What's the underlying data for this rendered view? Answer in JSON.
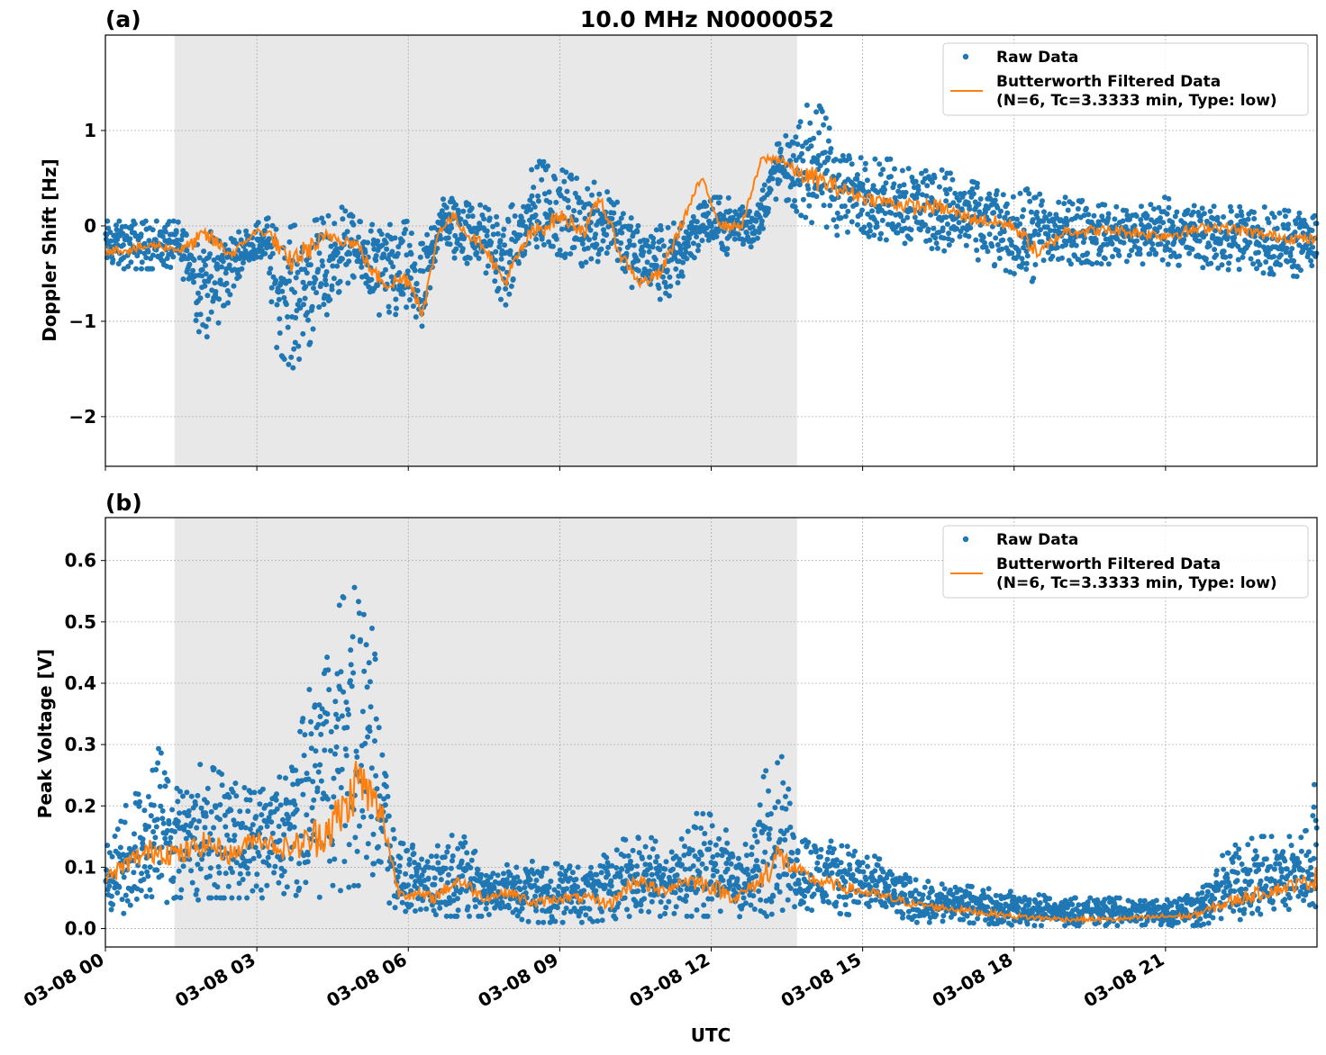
{
  "figure": {
    "title": "10.0 MHz N0000052",
    "xlabel": "UTC",
    "x_ticks": [
      "03-08 00",
      "03-08 03",
      "03-08 06",
      "03-08 09",
      "03-08 12",
      "03-08 15",
      "03-08 18",
      "03-08 21"
    ],
    "colors": {
      "raw": "#1f77b4",
      "filtered": "#ff7f0e",
      "night_shade": "#e8e8e8",
      "grid": "#b0b0b0"
    },
    "legend": {
      "raw_label": "Raw Data",
      "filtered_label_line1": "Butterworth Filtered Data",
      "filtered_label_line2": "(N=6, Tc=3.3333 min, Type: low)"
    }
  },
  "chart_data": [
    {
      "type": "scatter",
      "panel_label": "(a)",
      "ylabel": "Doppler Shift [Hz]",
      "xlim_hours": [
        0,
        24
      ],
      "ylim": [
        -2.52,
        2.0
      ],
      "yticks": [
        1,
        0,
        -1,
        -2
      ],
      "ytick_labels": [
        "1",
        "0",
        "−1",
        "−2"
      ],
      "shaded_interval_hours": [
        1.37,
        13.7
      ],
      "legend_position": "upper-right",
      "series": [
        {
          "name": "Raw Data",
          "style": "points"
        },
        {
          "name": "Butterworth Filtered Data (N=6, Tc=3.3333 min, Type: low)",
          "style": "line"
        }
      ],
      "filtered_trend": {
        "hours": [
          0,
          0.5,
          1.0,
          1.5,
          2.0,
          2.5,
          3.0,
          3.3,
          3.6,
          4.0,
          4.5,
          5.0,
          5.3,
          5.6,
          6.0,
          6.3,
          6.6,
          6.9,
          7.2,
          7.5,
          7.9,
          8.4,
          9.0,
          9.5,
          9.8,
          10.2,
          10.6,
          11.0,
          11.4,
          11.8,
          12.2,
          12.6,
          13.0,
          13.4,
          13.7,
          14.0,
          15.0,
          16.0,
          16.5,
          17.0,
          18.0,
          18.5,
          19.0,
          20.0,
          21.0,
          22.0,
          23.0,
          24.0
        ],
        "values": [
          -0.25,
          -0.25,
          -0.2,
          -0.25,
          -0.1,
          -0.3,
          -0.05,
          -0.1,
          -0.4,
          -0.25,
          -0.1,
          -0.2,
          -0.5,
          -0.6,
          -0.55,
          -0.9,
          -0.05,
          0.1,
          -0.1,
          -0.2,
          -0.6,
          -0.1,
          0.1,
          -0.05,
          0.3,
          -0.3,
          -0.6,
          -0.5,
          0.0,
          0.5,
          0.0,
          0.0,
          0.7,
          0.7,
          0.55,
          0.5,
          0.3,
          0.2,
          0.2,
          0.1,
          0.0,
          -0.3,
          -0.05,
          -0.05,
          -0.1,
          0.0,
          -0.1,
          -0.15
        ]
      },
      "raw_spread": {
        "hours": [
          0,
          1.4,
          1.6,
          1.9,
          2.2,
          2.8,
          3.2,
          3.4,
          3.7,
          4.1,
          4.4,
          4.7,
          5.0,
          5.5,
          6.0,
          6.3,
          6.6,
          6.9,
          7.5,
          7.9,
          8.3,
          8.6,
          9.0,
          9.5,
          10.0,
          10.5,
          11.2,
          11.8,
          12.3,
          12.9,
          13.3,
          13.7,
          14.0,
          14.5,
          15.0,
          16.0,
          17.0,
          18.0,
          18.3,
          19.0,
          20.0,
          21.0,
          22.0,
          23.0,
          24.0
        ],
        "lower": [
          -0.45,
          -0.45,
          -0.6,
          -1.2,
          -1.1,
          -0.35,
          -0.4,
          -1.3,
          -1.5,
          -1.2,
          -1.0,
          -0.6,
          -0.6,
          -1.0,
          -1.0,
          -1.3,
          -0.2,
          -0.35,
          -0.45,
          -0.9,
          -0.5,
          -0.3,
          -0.3,
          -0.45,
          -0.3,
          -0.7,
          -0.8,
          -0.2,
          -0.3,
          -0.2,
          0.3,
          0.15,
          0.0,
          -0.1,
          -0.1,
          -0.2,
          -0.3,
          -0.5,
          -0.6,
          -0.4,
          -0.4,
          -0.4,
          -0.45,
          -0.5,
          -0.55
        ],
        "upper": [
          0.05,
          0.05,
          0.0,
          0.0,
          -0.1,
          -0.05,
          0.1,
          -0.05,
          0.0,
          0.05,
          0.1,
          0.2,
          0.05,
          0.0,
          0.05,
          -0.2,
          0.25,
          0.35,
          0.2,
          0.1,
          0.4,
          0.8,
          0.6,
          0.45,
          0.5,
          0.0,
          0.0,
          0.3,
          0.3,
          0.2,
          0.9,
          1.0,
          1.4,
          0.9,
          0.7,
          0.7,
          0.5,
          0.3,
          0.4,
          0.3,
          0.2,
          0.3,
          0.2,
          0.2,
          0.1
        ]
      }
    },
    {
      "type": "scatter",
      "panel_label": "(b)",
      "ylabel": "Peak Voltage [V]",
      "xlim_hours": [
        0,
        24
      ],
      "ylim": [
        -0.03,
        0.67
      ],
      "yticks": [
        0.6,
        0.5,
        0.4,
        0.3,
        0.2,
        0.1,
        0.0
      ],
      "ytick_labels": [
        "0.6",
        "0.5",
        "0.4",
        "0.3",
        "0.2",
        "0.1",
        "0.0"
      ],
      "shaded_interval_hours": [
        1.37,
        13.7
      ],
      "legend_position": "upper-right",
      "series": [
        {
          "name": "Raw Data",
          "style": "points"
        },
        {
          "name": "Butterworth Filtered Data (N=6, Tc=3.3333 min, Type: low)",
          "style": "line"
        }
      ],
      "filtered_trend": {
        "hours": [
          0,
          0.5,
          1.0,
          1.5,
          2.0,
          2.5,
          3.0,
          3.5,
          4.0,
          4.5,
          4.8,
          5.0,
          5.2,
          5.5,
          5.8,
          6.5,
          7.0,
          7.5,
          8.0,
          8.5,
          9.0,
          9.5,
          10.0,
          10.5,
          11.0,
          11.5,
          12.0,
          12.5,
          13.0,
          13.3,
          13.6,
          14.0,
          14.5,
          15.0,
          16.0,
          17.0,
          17.5,
          18.0,
          19.0,
          20.0,
          21.0,
          21.5,
          22.0,
          22.5,
          23.0,
          23.5,
          24.0
        ],
        "values": [
          0.08,
          0.11,
          0.13,
          0.12,
          0.14,
          0.12,
          0.15,
          0.13,
          0.14,
          0.17,
          0.2,
          0.25,
          0.22,
          0.18,
          0.06,
          0.05,
          0.08,
          0.05,
          0.06,
          0.04,
          0.05,
          0.05,
          0.04,
          0.08,
          0.06,
          0.08,
          0.07,
          0.05,
          0.08,
          0.12,
          0.1,
          0.08,
          0.07,
          0.06,
          0.04,
          0.03,
          0.025,
          0.02,
          0.015,
          0.015,
          0.02,
          0.02,
          0.035,
          0.05,
          0.06,
          0.07,
          0.08
        ]
      },
      "raw_spread": {
        "hours": [
          0,
          0.8,
          1.0,
          1.5,
          2.0,
          2.5,
          3.0,
          3.5,
          3.8,
          4.2,
          4.6,
          4.9,
          5.1,
          5.3,
          5.5,
          5.8,
          6.5,
          7.0,
          7.6,
          8.5,
          9.5,
          10.5,
          11.3,
          11.8,
          12.3,
          12.8,
          13.1,
          13.4,
          13.7,
          14.0,
          15.0,
          16.0,
          17.0,
          18.0,
          19.0,
          20.0,
          21.0,
          21.8,
          22.2,
          22.8,
          23.3,
          23.8,
          24.0
        ],
        "lower": [
          0.02,
          0.03,
          0.04,
          0.04,
          0.05,
          0.05,
          0.05,
          0.05,
          0.04,
          0.05,
          0.06,
          0.07,
          0.07,
          0.06,
          0.05,
          0.03,
          0.02,
          0.02,
          0.02,
          0.01,
          0.01,
          0.02,
          0.02,
          0.02,
          0.02,
          0.01,
          0.02,
          0.03,
          0.03,
          0.03,
          0.02,
          0.01,
          0.01,
          0.005,
          0.005,
          0.005,
          0.005,
          0.005,
          0.01,
          0.02,
          0.02,
          0.03,
          0.03
        ],
        "upper": [
          0.16,
          0.24,
          0.3,
          0.26,
          0.27,
          0.24,
          0.22,
          0.25,
          0.3,
          0.45,
          0.52,
          0.58,
          0.53,
          0.52,
          0.33,
          0.14,
          0.13,
          0.16,
          0.1,
          0.11,
          0.1,
          0.16,
          0.13,
          0.2,
          0.16,
          0.13,
          0.3,
          0.28,
          0.16,
          0.15,
          0.13,
          0.08,
          0.07,
          0.06,
          0.05,
          0.05,
          0.05,
          0.07,
          0.13,
          0.15,
          0.15,
          0.16,
          0.3
        ]
      }
    }
  ]
}
